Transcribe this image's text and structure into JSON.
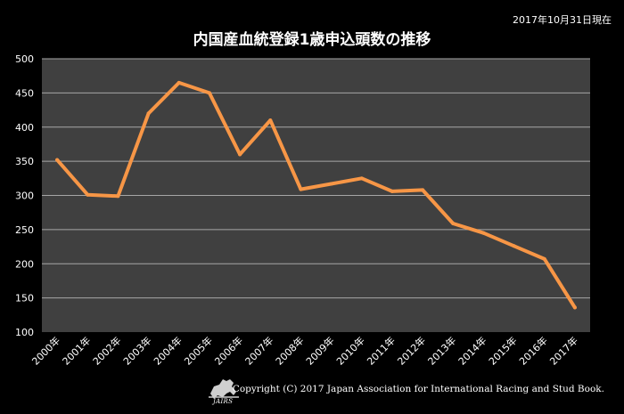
{
  "date_note": "2017年10月31日現在",
  "footer": {
    "copyright": "Copyright (C) 2017 Japan Association for International Racing and Stud Book.",
    "logo_text": "JAIRS"
  },
  "colors": {
    "background": "#000000",
    "plot_area": "#404040",
    "gridline": "#a6a6a6",
    "line": "#f79646",
    "text": "#ffffff"
  },
  "chart_data": {
    "type": "line",
    "title": "内国産血統登録1歳申込頭数の推移",
    "xlabel": "",
    "ylabel": "",
    "categories": [
      "2000年",
      "2001年",
      "2002年",
      "2003年",
      "2004年",
      "2005年",
      "2006年",
      "2007年",
      "2008年",
      "2009年",
      "2010年",
      "2011年",
      "2012年",
      "2013年",
      "2014年",
      "2015年",
      "2016年",
      "2017年"
    ],
    "series": [
      {
        "values": [
          352,
          301,
          299,
          420,
          465,
          450,
          360,
          410,
          309,
          317,
          325,
          306,
          308,
          259,
          245,
          226,
          207,
          136
        ]
      }
    ],
    "ylim": [
      100,
      500
    ],
    "yticks": [
      100,
      150,
      200,
      250,
      300,
      350,
      400,
      450,
      500
    ],
    "grid": true,
    "legend": "none"
  }
}
